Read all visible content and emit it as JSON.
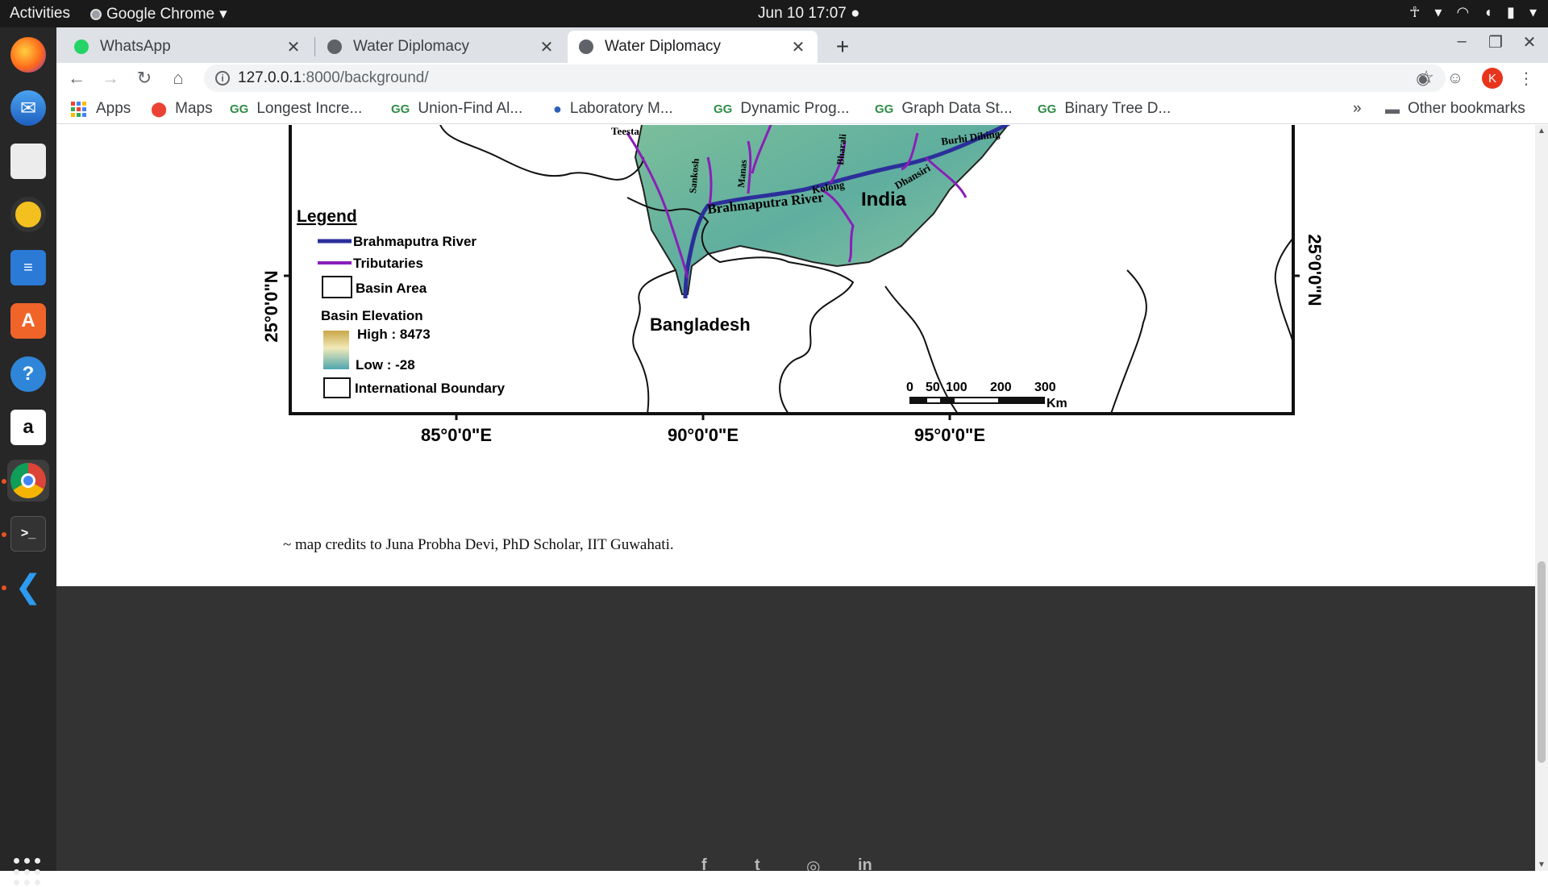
{
  "topbar": {
    "activities": "Activities",
    "app_name": "Google Chrome",
    "datetime": "Jun 10  17:07"
  },
  "dock": {
    "items": [
      "firefox-icon",
      "thunderbird-icon",
      "files-icon",
      "rhythmbox-icon",
      "writer-icon",
      "software-icon",
      "help-icon",
      "amazon-icon",
      "chrome-icon",
      "terminal-icon",
      "vscode-icon"
    ]
  },
  "tabs": [
    {
      "title": "WhatsApp",
      "active": false
    },
    {
      "title": "Water Diplomacy",
      "active": false
    },
    {
      "title": "Water Diplomacy",
      "active": true
    }
  ],
  "omnibox": {
    "host": "127.0.0.1",
    "rest": ":8000/background/"
  },
  "profile_initial": "K",
  "bookmarks": {
    "items": [
      "Apps",
      "Maps",
      "Longest Incre...",
      "Union-Find Al...",
      "Laboratory M...",
      "Dynamic Prog...",
      "Graph Data St...",
      "Binary Tree D..."
    ],
    "overflow": "»",
    "other": "Other bookmarks"
  },
  "map": {
    "legend_title": "Legend",
    "legend_items": [
      "Brahmaputra River",
      "Tributaries",
      "Basin Area"
    ],
    "elevation_title": "Basin Elevation",
    "elevation_high": "High : 8473",
    "elevation_low": "Low : -28",
    "boundary_label": "International Boundary",
    "lat_label": "25°0'0\"N",
    "lon_labels": [
      "85°0'0\"E",
      "90°0'0\"E",
      "95°0'0\"E"
    ],
    "place_labels": {
      "bangladesh": "Bangladesh",
      "india": "India",
      "brahmaputra_river": "Brahmaputra  River",
      "teesta": "Teesta",
      "sankosh": "Sankosh",
      "manas": "Manas",
      "bharali": "Bharali",
      "kolong": "Kolong",
      "dhansiri": "Dhansiri",
      "burhi_dihing": "Burhi Dihing"
    },
    "scale_numbers": [
      "0",
      "50",
      "100",
      "200",
      "300"
    ],
    "scale_unit": "Km",
    "colors": {
      "river": "#2b2f9a",
      "tributary": "#8a1fb8",
      "terrain_low": "#4fa6b0",
      "terrain_high": "#c9a64a"
    }
  },
  "credit": "~ map credits to Juna Probha Devi, PhD Scholar, IIT Guwahati.",
  "footer": {
    "social_icons": [
      "f",
      "t",
      "◎",
      "in"
    ]
  }
}
